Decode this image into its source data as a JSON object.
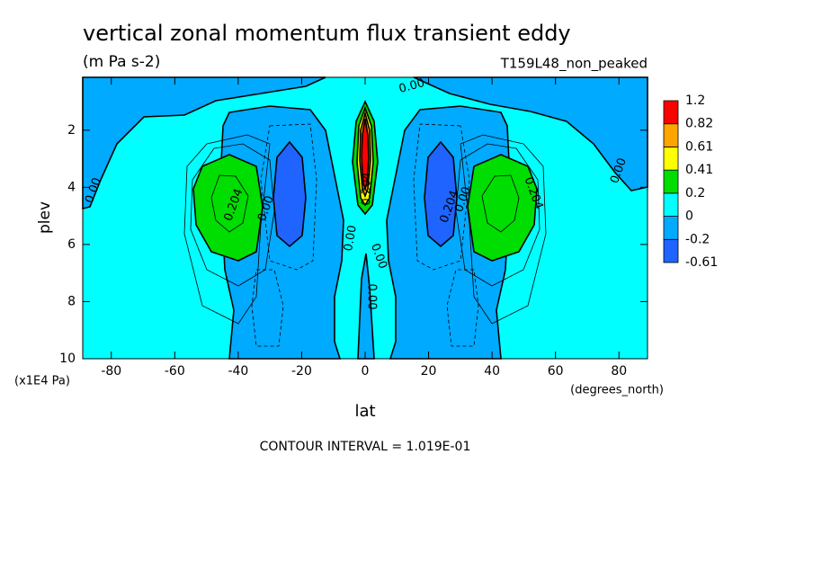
{
  "chart_data": {
    "type": "contour",
    "title": "vertical zonal momentum flux transient eddy",
    "subtitle": "(m Pa s-2)",
    "dataset": "T159L48_non_peaked",
    "xlabel": "lat",
    "ylabel": "plev",
    "x_units": "(degrees_north)",
    "y_units": "(x1E4 Pa)",
    "footnote": "CONTOUR INTERVAL = 1.019E-01",
    "xlim": [
      -89,
      89
    ],
    "xticks": [
      -80,
      -60,
      -40,
      -20,
      0,
      20,
      40,
      60,
      80
    ],
    "ylim": [
      10,
      0.15
    ],
    "yticks": [
      2,
      4,
      6,
      8,
      10
    ],
    "levels": [
      -0.61,
      -0.2,
      0,
      0.2,
      0.41,
      0.61,
      0.82,
      1.2
    ],
    "level_colors": [
      "#1f64ff",
      "#00aaff",
      "#00ffff",
      "#00dd00",
      "#ffff00",
      "#ffa500",
      "#ff0000"
    ],
    "contour_labels": [
      "0.00",
      "0.00",
      "0.00",
      "0.204",
      "0.00",
      "0.00",
      "0.204",
      "0.00",
      "0.00",
      "0.204",
      "0.00",
      "0.204"
    ]
  }
}
